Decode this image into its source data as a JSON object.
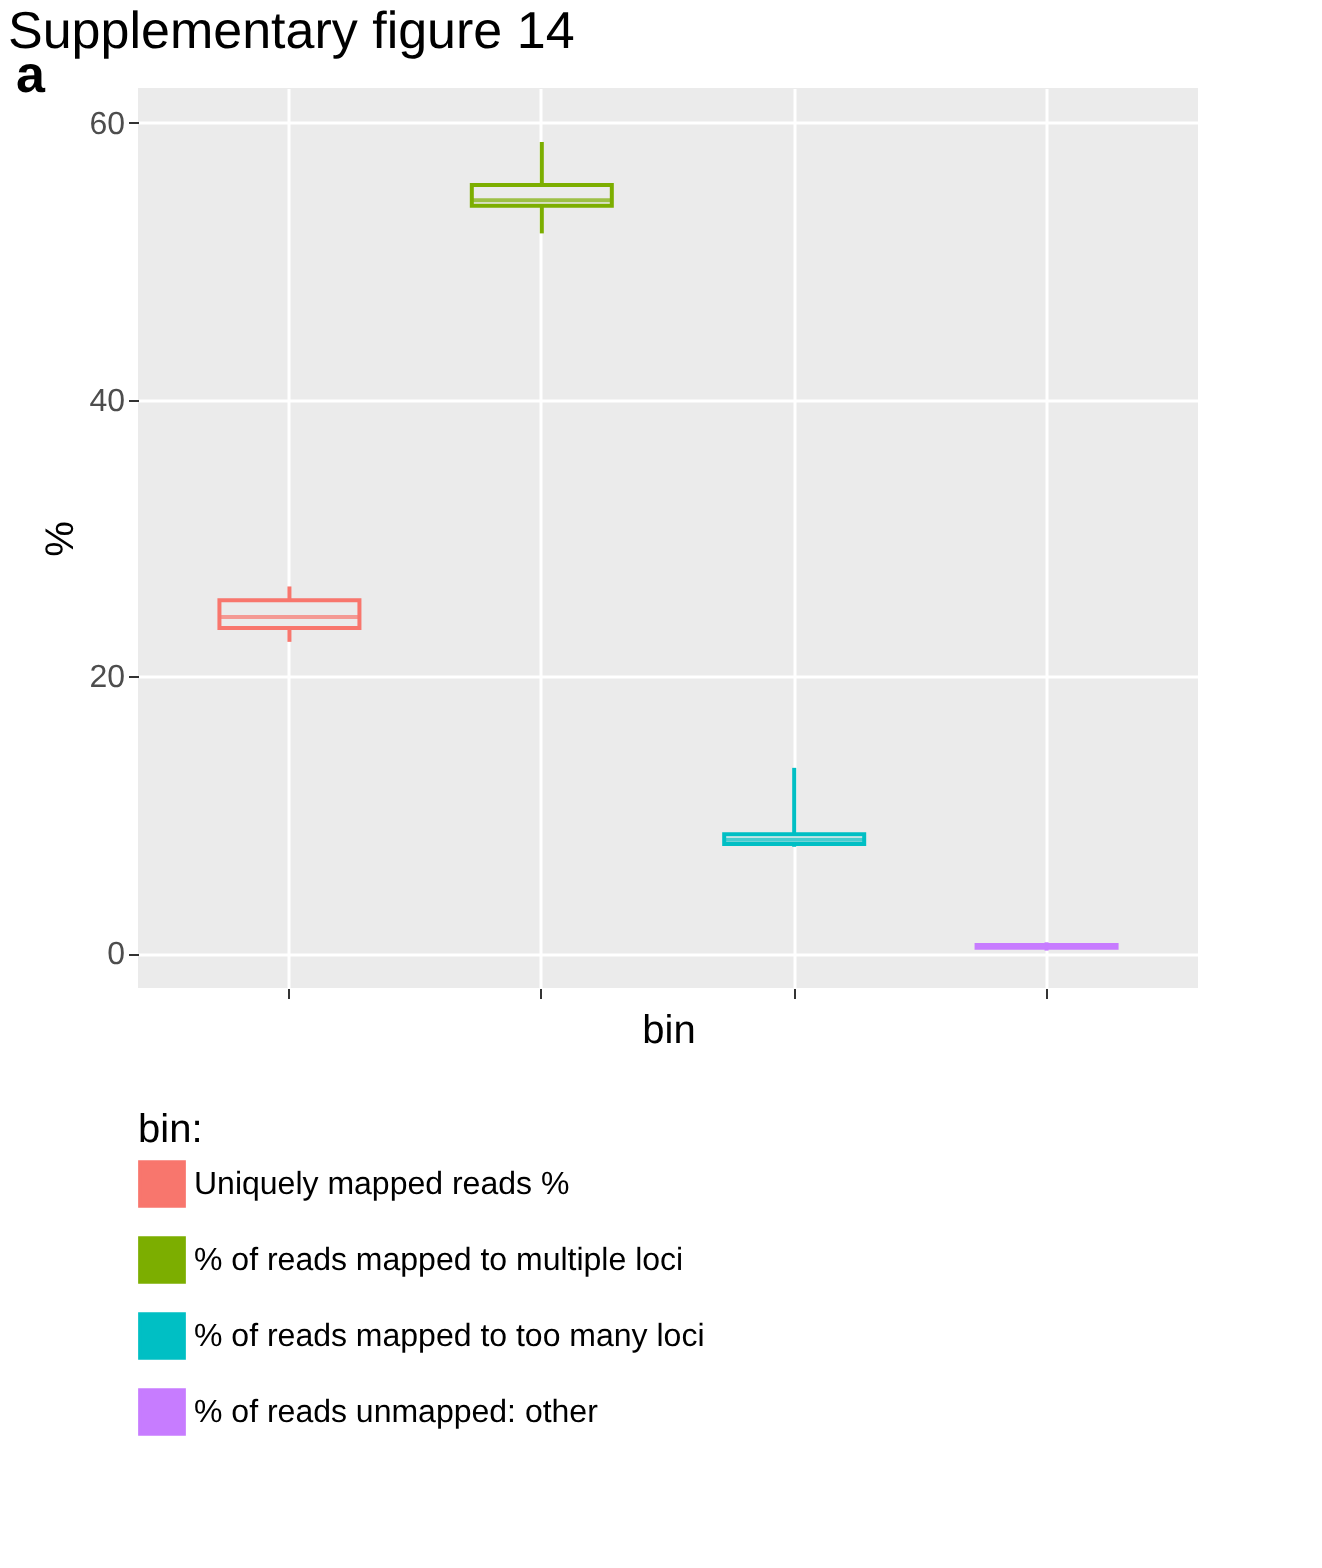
{
  "chart_data": {
    "type": "box",
    "title": "Supplementary figure 14",
    "annotations": [
      "a"
    ],
    "xlabel": "bin",
    "ylabel": "%",
    "legend_title": "bin:",
    "legend": "bottom",
    "grid": true,
    "categories": [
      null,
      null,
      null,
      null
    ],
    "ylim": [
      -2.5,
      62.5
    ],
    "yticks": [
      0,
      20,
      40,
      60
    ],
    "series": [
      {
        "name": "Uniquely mapped reads %",
        "color": "#f8766d",
        "boxes": [
          {
            "low": 22.5,
            "q1": 23.5,
            "median": 24.3,
            "q3": 25.5,
            "high": 26.5
          },
          null,
          null,
          null
        ]
      },
      {
        "name": "% of reads mapped to multiple loci",
        "color": "#7cae00",
        "boxes": [
          null,
          {
            "low": 52,
            "q1": 54,
            "median": 54.4,
            "q3": 55.5,
            "high": 58.6
          },
          null,
          null
        ]
      },
      {
        "name": "% of reads mapped to too many loci",
        "color": "#00bfc4",
        "boxes": [
          null,
          null,
          {
            "low": 7.7,
            "q1": 7.9,
            "median": 8.2,
            "q3": 8.6,
            "high": 13.4
          },
          null
        ]
      },
      {
        "name": "% of reads unmapped: other",
        "color": "#c77cff",
        "boxes": [
          null,
          null,
          null,
          {
            "low": 0.2,
            "q1": 0.4,
            "median": 0.5,
            "q3": 0.6,
            "high": 0.8
          }
        ]
      }
    ]
  }
}
